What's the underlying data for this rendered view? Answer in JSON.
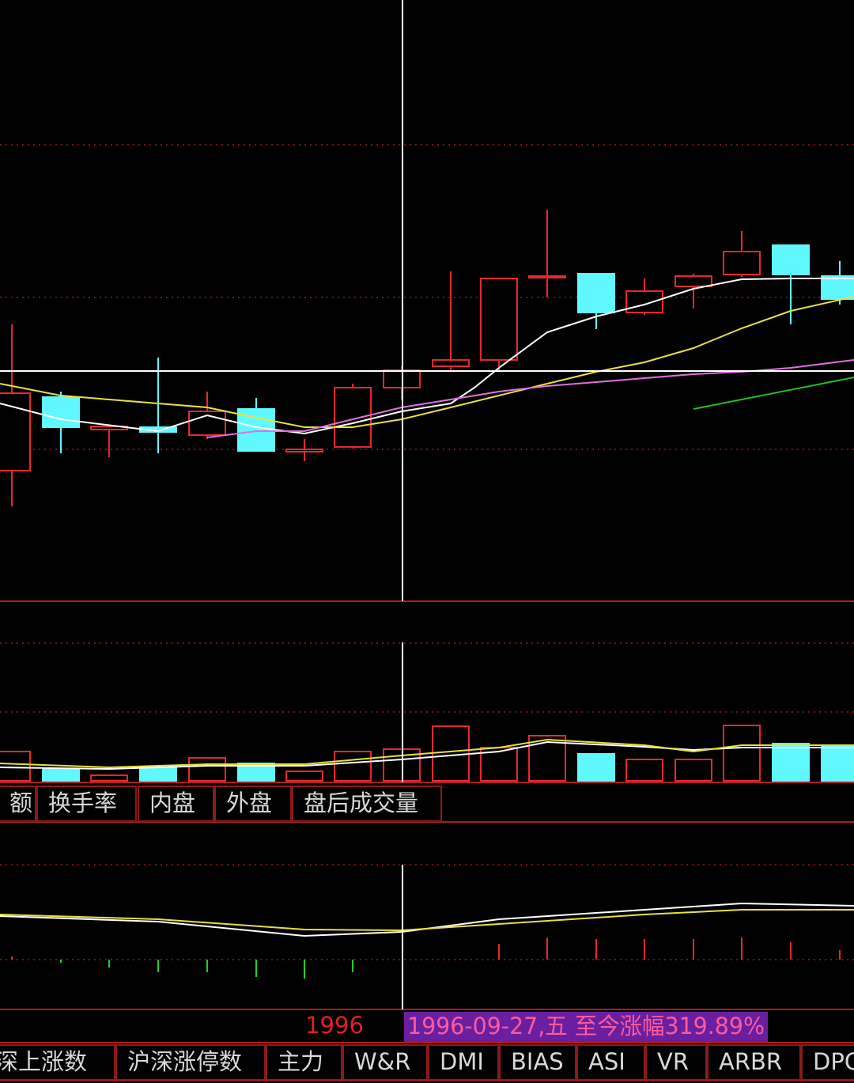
{
  "main_tabs": [
    "额",
    "换手率",
    "内盘",
    "外盘",
    "盘后成交量"
  ],
  "axis_label": "1996",
  "tooltip": "1996-09-27,五 至今涨幅319.89%",
  "bottom_tabs": [
    "深上涨数",
    "沪深涨停数",
    "主力",
    "W&R",
    "DMI",
    "BIAS",
    "ASI",
    "VR",
    "ARBR",
    "DPC"
  ]
}
